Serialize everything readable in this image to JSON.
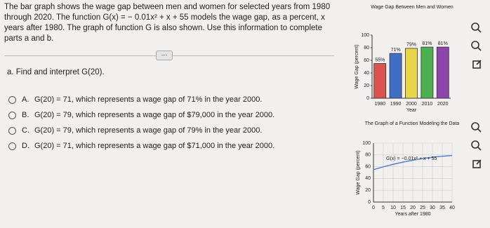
{
  "question": "The bar graph shows the wage gap between men and women for selected years from 1980 through 2020. The function G(x) = − 0.01x² + x + 55 models the wage gap, as a percent, x years after 1980. The graph of function G is also shown. Use this information to complete parts a and b.",
  "divider_label": "···",
  "part_a": "a. Find and interpret G(20).",
  "options": [
    {
      "letter": "A.",
      "text": "G(20) = 71, which represents a wage gap of 71% in the year 2000."
    },
    {
      "letter": "B.",
      "text": "G(20) = 79, which represents a wage gap of $79,000 in the year 2000."
    },
    {
      "letter": "C.",
      "text": "G(20) = 79, which represents a wage gap of 79% in the year 2000."
    },
    {
      "letter": "D.",
      "text": "G(20) = 71, which represents a wage gap of $71,000 in the year 2000."
    }
  ],
  "chart_data": [
    {
      "type": "bar",
      "title": "Wage Gap Between Men and Women",
      "x_label": "Year",
      "y_label": "Wage Gap (percent)",
      "categories": [
        "1980",
        "1990",
        "2000",
        "2010",
        "2020"
      ],
      "values": [
        55,
        71,
        79,
        81,
        81
      ],
      "value_labels": [
        "55%",
        "71%",
        "79%",
        "81%",
        "81%"
      ],
      "colors": [
        "#d9534f",
        "#3f6fc4",
        "#e8d64a",
        "#4caf50",
        "#8e44ad"
      ],
      "ylim": [
        0,
        100
      ],
      "yticks": [
        0,
        20,
        40,
        60,
        80,
        100
      ]
    },
    {
      "type": "line",
      "title": "The Graph of a Function Modeling the Data",
      "x_label": "Years after 1980",
      "y_label": "Wage Gap (percent)",
      "x": [
        0,
        5,
        10,
        15,
        20,
        25,
        30,
        35,
        40
      ],
      "series": [
        {
          "name": "G(x) = −0.01x² + x + 55",
          "color": "#5b7fc7",
          "values": [
            55,
            59.75,
            64,
            67.75,
            71,
            73.75,
            76,
            77.75,
            79
          ]
        }
      ],
      "xlim": [
        0,
        40
      ],
      "xticks": [
        0,
        5,
        10,
        15,
        20,
        25,
        30,
        35,
        40
      ],
      "ylim": [
        0,
        100
      ],
      "yticks": [
        0,
        20,
        40,
        60,
        80,
        100
      ],
      "grid": true
    }
  ]
}
